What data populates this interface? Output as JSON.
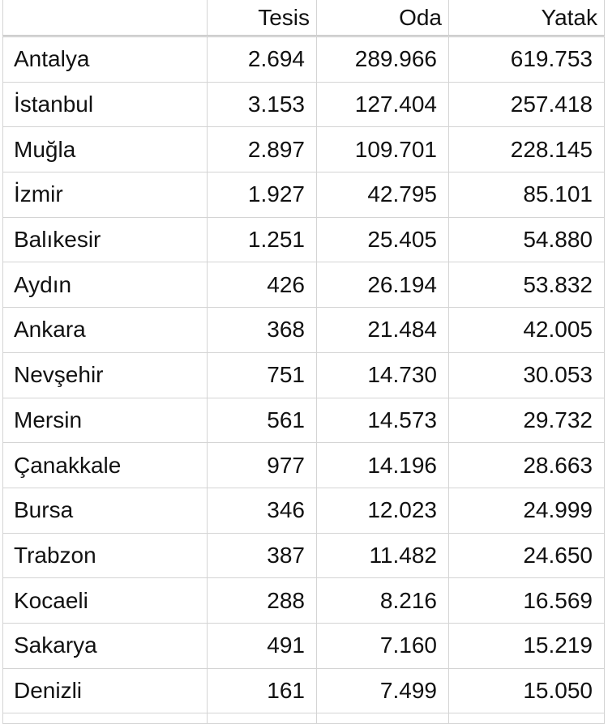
{
  "headers": [
    "",
    "Tesis",
    "Oda",
    "Yatak"
  ],
  "rows": [
    {
      "il": "Antalya",
      "tesis": "2.694",
      "oda": "289.966",
      "yatak": "619.753"
    },
    {
      "il": "İstanbul",
      "tesis": "3.153",
      "oda": "127.404",
      "yatak": "257.418"
    },
    {
      "il": "Muğla",
      "tesis": "2.897",
      "oda": "109.701",
      "yatak": "228.145"
    },
    {
      "il": "İzmir",
      "tesis": "1.927",
      "oda": "42.795",
      "yatak": "85.101"
    },
    {
      "il": "Balıkesir",
      "tesis": "1.251",
      "oda": "25.405",
      "yatak": "54.880"
    },
    {
      "il": "Aydın",
      "tesis": "426",
      "oda": "26.194",
      "yatak": "53.832"
    },
    {
      "il": "Ankara",
      "tesis": "368",
      "oda": "21.484",
      "yatak": "42.005"
    },
    {
      "il": "Nevşehir",
      "tesis": "751",
      "oda": "14.730",
      "yatak": "30.053"
    },
    {
      "il": "Mersin",
      "tesis": "561",
      "oda": "14.573",
      "yatak": "29.732"
    },
    {
      "il": "Çanakkale",
      "tesis": "977",
      "oda": "14.196",
      "yatak": "28.663"
    },
    {
      "il": "Bursa",
      "tesis": "346",
      "oda": "12.023",
      "yatak": "24.999"
    },
    {
      "il": "Trabzon",
      "tesis": "387",
      "oda": "11.482",
      "yatak": "24.650"
    },
    {
      "il": "Kocaeli",
      "tesis": "288",
      "oda": "8.216",
      "yatak": "16.569"
    },
    {
      "il": "Sakarya",
      "tesis": "491",
      "oda": "7.160",
      "yatak": "15.219"
    },
    {
      "il": "Denizli",
      "tesis": "161",
      "oda": "7.499",
      "yatak": "15.050"
    }
  ]
}
